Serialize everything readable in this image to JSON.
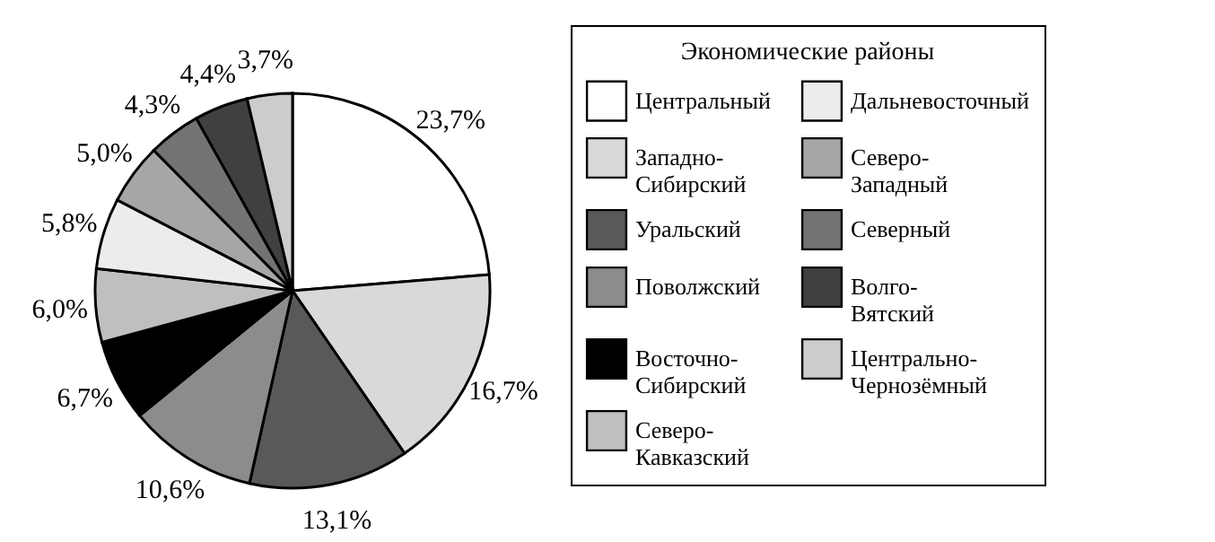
{
  "chart_data": {
    "type": "pie",
    "legend_title": "Экономические районы",
    "categories": [
      "Центральный",
      "Западно-Сибирский",
      "Уральский",
      "Поволжский",
      "Восточно-Сибирский",
      "Северо-Кавказский",
      "Дальневосточный",
      "Северо-Западный",
      "Северный",
      "Волго-Вятский",
      "Центрально-Чернозёмный"
    ],
    "values": [
      23.7,
      16.7,
      13.1,
      10.6,
      6.7,
      6.0,
      5.8,
      5.0,
      4.3,
      4.4,
      3.7
    ],
    "colors": [
      "#ffffff",
      "#d9d9d9",
      "#595959",
      "#8c8c8c",
      "#000000",
      "#bfbfbf",
      "#ececec",
      "#a6a6a6",
      "#737373",
      "#404040",
      "#cccccc"
    ],
    "value_labels": [
      "23,7%",
      "16,7%",
      "13,1%",
      "10,6%",
      "6,7%",
      "6,0%",
      "5,8%",
      "5,0%",
      "4,3%",
      "4,4%",
      "3,7%"
    ],
    "legend": "right"
  }
}
